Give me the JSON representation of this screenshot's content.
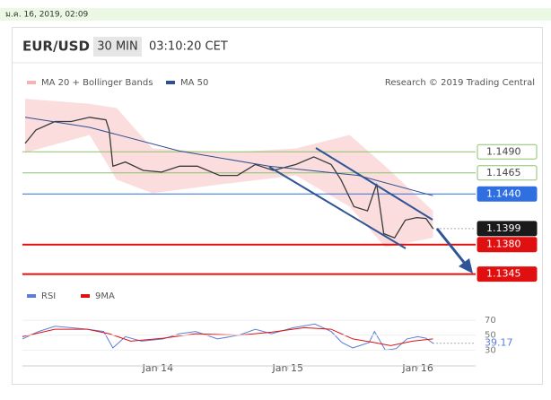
{
  "header": {
    "timestamp": "ม.ค. 16, 2019, 02:09"
  },
  "chart_data": [
    {
      "type": "line",
      "title": "EUR/USD",
      "timeframe": "30 MIN",
      "time": "03:10:20 CET",
      "source": "Research © 2019 Trading Central",
      "color": "#3a3a3a",
      "x": [
        0.5,
        2.5,
        6,
        9,
        12.4,
        15.4,
        16,
        16.7,
        19,
        22.3,
        25.7,
        29,
        32.3,
        36.4,
        39.7,
        43,
        46.3,
        50.5,
        53.8,
        57,
        58.8,
        61.2,
        63.7,
        65.4,
        66.7,
        68.7,
        70.7,
        72.8,
        74.5,
        75.8
      ],
      "values": [
        1.15,
        1.1516,
        1.1526,
        1.1526,
        1.1531,
        1.1528,
        1.1516,
        1.1473,
        1.1478,
        1.1468,
        1.1466,
        1.1473,
        1.1473,
        1.1462,
        1.1462,
        1.1475,
        1.1468,
        1.1475,
        1.1484,
        1.1475,
        1.1457,
        1.1425,
        1.142,
        1.1452,
        1.1393,
        1.1388,
        1.1409,
        1.1412,
        1.1411,
        1.1399
      ],
      "series": [
        {
          "name": "MA 20 + Bollinger Bands",
          "color": "#f6b3b3",
          "x": [
            0.5,
            12.4,
            17.4,
            24,
            37.3,
            50.5,
            60.4,
            67,
            75.8
          ],
          "upper": [
            1.1553,
            1.1547,
            1.1542,
            1.1494,
            1.1489,
            1.1494,
            1.151,
            1.1473,
            1.142
          ],
          "lower": [
            1.1489,
            1.151,
            1.1457,
            1.1441,
            1.1452,
            1.1462,
            1.1425,
            1.1377,
            1.1388
          ]
        },
        {
          "name": "MA 50",
          "color": "#2f4f8f",
          "x": [
            0.5,
            12.4,
            29,
            45.5,
            62,
            75.8
          ],
          "values": [
            1.1531,
            1.1519,
            1.1491,
            1.1473,
            1.1462,
            1.1438
          ]
        }
      ],
      "levels": [
        {
          "value": 1.149,
          "label": "1.1490",
          "color": "#8dc26f",
          "style": "outline"
        },
        {
          "value": 1.1465,
          "label": "1.1465",
          "color": "#8dc26f",
          "style": "outline"
        },
        {
          "value": 1.144,
          "label": "1.1440",
          "color": "#2f6fe0",
          "style": "filled"
        },
        {
          "value": 1.1399,
          "label": "1.1399",
          "color": "#1a1a1a",
          "style": "current"
        },
        {
          "value": 1.138,
          "label": "1.1380",
          "color": "#e01010",
          "style": "filled"
        },
        {
          "value": 1.1345,
          "label": "1.1345",
          "color": "#e01010",
          "style": "filled"
        }
      ],
      "xlim": [
        0,
        84
      ],
      "ylim": [
        1.1335,
        1.1585
      ]
    },
    {
      "type": "line",
      "series": [
        {
          "name": "RSI",
          "color": "#5b7fd6",
          "x": [
            0,
            3,
            6,
            9,
            12,
            15,
            16.7,
            19,
            22,
            26,
            29,
            32,
            36,
            40,
            43,
            46,
            50,
            54,
            57,
            59,
            61,
            64,
            65,
            67,
            69,
            71,
            73,
            74.5,
            75.8
          ],
          "values": [
            45,
            55,
            62,
            60,
            58,
            55,
            33,
            48,
            42,
            45,
            52,
            55,
            45,
            50,
            58,
            52,
            60,
            65,
            55,
            40,
            33,
            40,
            55,
            30,
            32,
            45,
            48,
            46,
            39.17
          ]
        },
        {
          "name": "9MA",
          "color": "#e01010",
          "x": [
            0,
            6,
            12,
            16,
            20,
            26,
            32,
            40,
            46,
            52,
            57,
            61,
            65,
            68,
            72,
            75.8
          ],
          "values": [
            48,
            58,
            58,
            52,
            42,
            46,
            52,
            50,
            54,
            60,
            58,
            45,
            40,
            36,
            42,
            45
          ]
        }
      ],
      "xlim": [
        0,
        84
      ],
      "ylim": [
        22,
        93
      ],
      "yticks": [
        30,
        50,
        70
      ],
      "xticks": [
        {
          "value": 25,
          "label": "Jan 14"
        },
        {
          "value": 49,
          "label": "Jan 15"
        },
        {
          "value": 73,
          "label": "Jan 16"
        }
      ]
    }
  ]
}
